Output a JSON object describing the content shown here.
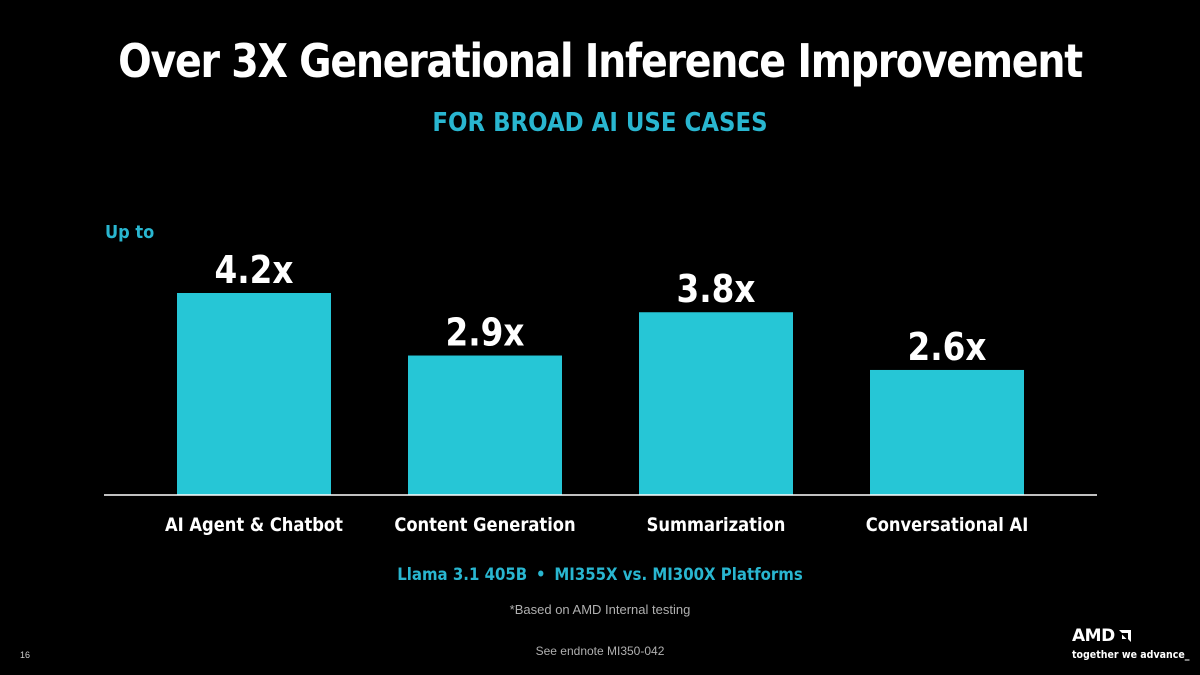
{
  "slide": {
    "title": "Over 3X Generational Inference Improvement",
    "subtitle": "FOR BROAD AI USE CASES",
    "up_to": "Up to",
    "footnote_model": "Llama 3.1 405B",
    "footnote_sep": "•",
    "footnote_platforms": "MI355X vs. MI300X Platforms",
    "footnote_testing": "*Based on AMD Internal testing",
    "endnote": "See endnote MI350-042",
    "page_number": "16",
    "logo_text": "AMD",
    "tagline": "together we advance_"
  },
  "colors": {
    "background": "#000000",
    "bar": "#26c6d6",
    "accent": "#29b6d0",
    "axis": "#ffffff",
    "text": "#ffffff"
  },
  "chart_data": {
    "type": "bar",
    "categories": [
      "AI Agent & Chatbot",
      "Content Generation",
      "Summarization",
      "Conversational AI"
    ],
    "values": [
      4.2,
      2.9,
      3.8,
      2.6
    ],
    "value_labels": [
      "4.2x",
      "2.9x",
      "3.8x",
      "2.6x"
    ],
    "title": "Over 3X Generational Inference Improvement",
    "subtitle": "FOR BROAD AI USE CASES",
    "ylim": [
      0,
      4.2
    ],
    "grid": false,
    "legend": "none"
  }
}
